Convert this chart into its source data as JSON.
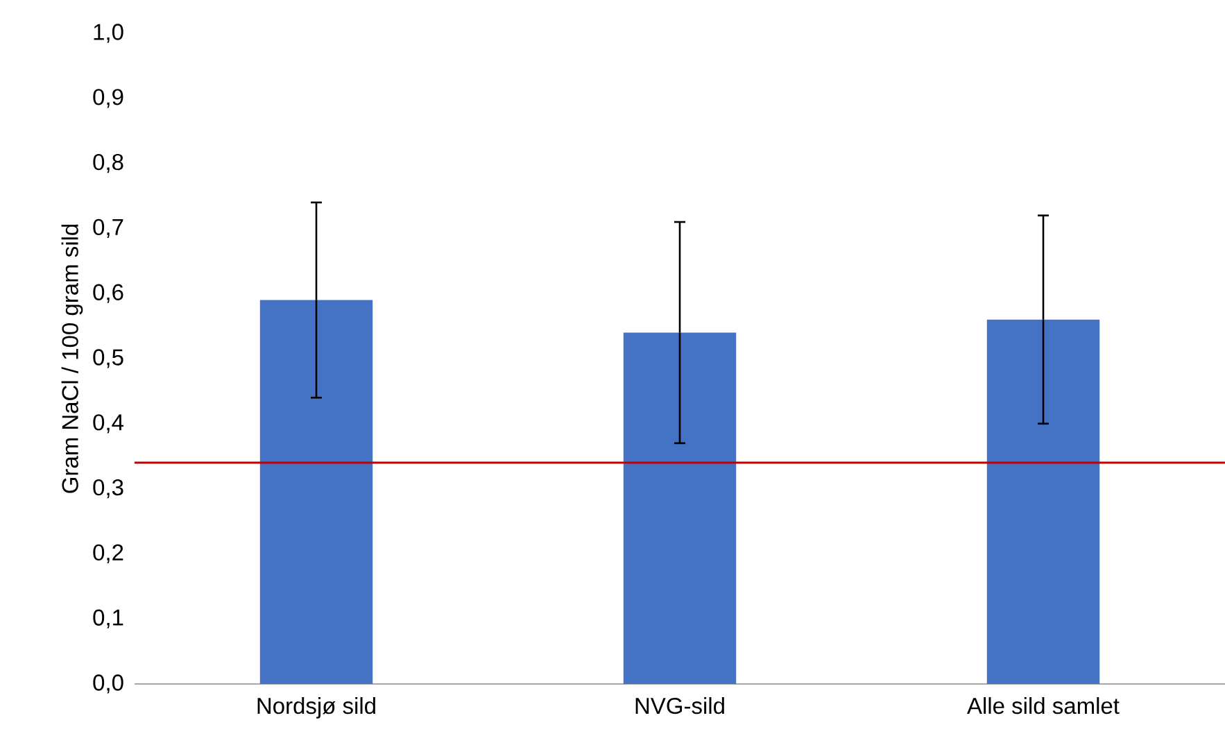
{
  "chart_data": {
    "type": "bar",
    "ylabel": "Gram NaCl / 100 gram sild",
    "categories": [
      "Nordsjø sild",
      "NVG-sild",
      "Alle sild samlet"
    ],
    "values": [
      0.59,
      0.54,
      0.56
    ],
    "errors": [
      0.15,
      0.17,
      0.16
    ],
    "color": "#4472c4",
    "ylim": [
      0,
      1
    ],
    "yticks": [
      {
        "value": 0,
        "label": "0,0"
      },
      {
        "value": 0.1,
        "label": "0,1"
      },
      {
        "value": 0.2,
        "label": "0,2"
      },
      {
        "value": 0.3,
        "label": "0,3"
      },
      {
        "value": 0.4,
        "label": "0,4"
      },
      {
        "value": 0.5,
        "label": "0,5"
      },
      {
        "value": 0.6,
        "label": "0,6"
      },
      {
        "value": 0.7,
        "label": "0,7"
      },
      {
        "value": 0.8,
        "label": "0,8"
      },
      {
        "value": 0.9,
        "label": "0,9"
      },
      {
        "value": 1,
        "label": "1,0"
      }
    ],
    "ref_lines": [
      {
        "axis": "y",
        "value": 0.34,
        "color": "#c00000"
      }
    ]
  }
}
